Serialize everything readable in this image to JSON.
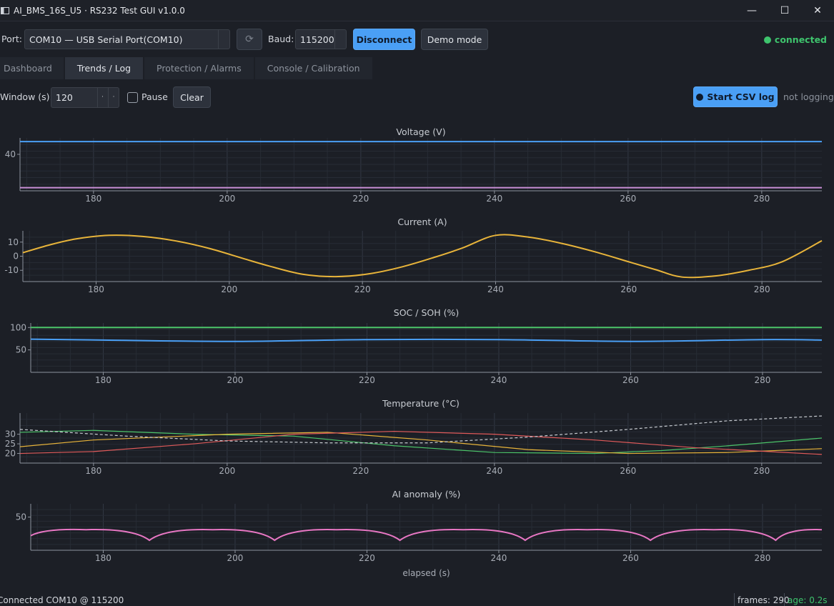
{
  "window": {
    "title": "AI_BMS_16S_U5 · RS232 Test GUI  v1.0.0",
    "minimize": "—",
    "maximize": "☐",
    "close": "✕"
  },
  "toolbar": {
    "port_label": "Port:",
    "port_value": "COM10 — USB Serial Port(COM10)",
    "refresh_icon": "⟳",
    "baud_label": "Baud:",
    "baud_value": "115200",
    "disconnect_label": "Disconnect",
    "demo_label": "Demo mode",
    "connection_status": "connected",
    "status_color": "#3ec46d"
  },
  "tabs": [
    {
      "label": "Dashboard",
      "active": false
    },
    {
      "label": "Trends / Log",
      "active": true
    },
    {
      "label": "Protection / Alarms",
      "active": false
    },
    {
      "label": "Console / Calibration",
      "active": false
    }
  ],
  "controls": {
    "window_label": "Window (s):",
    "window_value": "120",
    "pause_label": "Pause",
    "clear_label": "Clear",
    "csv_label": "Start CSV log",
    "logging_status": "not logging"
  },
  "status_bar": {
    "connection": "Connected COM10 @ 115200",
    "frames": "frames: 290",
    "age": "age: 0.2s"
  },
  "chart_data": [
    {
      "type": "line",
      "title": "Voltage (V)",
      "xlim": [
        169,
        289
      ],
      "ylim": [
        0,
        58
      ],
      "x_ticks": [
        180,
        200,
        220,
        240,
        260,
        280
      ],
      "y_ticks": [
        40
      ],
      "series": [
        {
          "color": "#4a9ff5",
          "x": [
            169,
            289
          ],
          "y": [
            54,
            54
          ]
        },
        {
          "color": "#c98fd6",
          "x": [
            169,
            289
          ],
          "y": [
            3.4,
            3.4
          ]
        }
      ]
    },
    {
      "type": "line",
      "title": "Current (A)",
      "xlim": [
        169,
        289
      ],
      "ylim": [
        -18,
        18
      ],
      "x_ticks": [
        180,
        200,
        220,
        240,
        260,
        280
      ],
      "y_ticks": [
        10,
        0,
        -10
      ],
      "series": [
        {
          "color": "#e8b43a",
          "x": [
            169,
            173,
            177,
            182,
            187,
            192,
            197,
            202,
            206,
            211,
            216,
            221,
            226,
            231,
            235,
            240,
            245,
            250,
            255,
            260,
            264,
            268,
            273,
            278,
            283,
            289
          ],
          "y": [
            2.5,
            8,
            12.3,
            14.8,
            14,
            10.8,
            5.5,
            -1.5,
            -7,
            -12.8,
            -14.5,
            -12.5,
            -7.5,
            -0.5,
            5.8,
            14.8,
            13.5,
            9,
            3,
            -4,
            -9.5,
            -14.8,
            -14,
            -10,
            -4,
            11
          ]
        }
      ]
    },
    {
      "type": "line",
      "title": "SOC / SOH (%)",
      "xlim": [
        169,
        289
      ],
      "ylim": [
        0,
        110
      ],
      "x_ticks": [
        180,
        200,
        220,
        240,
        260,
        280
      ],
      "y_ticks": [
        100,
        50
      ],
      "series": [
        {
          "color": "#4cc56a",
          "x": [
            169,
            289
          ],
          "y": [
            100,
            100
          ]
        },
        {
          "color": "#4a9ff5",
          "x": [
            169,
            180,
            200,
            220,
            240,
            260,
            280,
            289
          ],
          "y": [
            74,
            72,
            69,
            73,
            73,
            69,
            73,
            72
          ]
        }
      ]
    },
    {
      "type": "line",
      "title": "Temperature (°C)",
      "xlim": [
        169,
        289
      ],
      "ylim": [
        15,
        41
      ],
      "x_ticks": [
        180,
        200,
        220,
        240,
        260,
        280
      ],
      "y_ticks": [
        30,
        25,
        20
      ],
      "series": [
        {
          "color": "#4cc56a",
          "x": [
            169,
            180,
            195,
            210,
            225,
            240,
            255,
            265,
            275,
            289
          ],
          "y": [
            31,
            32,
            30,
            29,
            24,
            20.5,
            20,
            21.5,
            24,
            28
          ]
        },
        {
          "color": "#e8b43a",
          "x": [
            169,
            180,
            200,
            215,
            230,
            245,
            260,
            275,
            289
          ],
          "y": [
            23.5,
            27,
            30,
            31,
            27,
            22,
            20,
            20.5,
            22.5
          ]
        },
        {
          "color": "#e05a5a",
          "x": [
            169,
            180,
            195,
            210,
            225,
            240,
            255,
            270,
            289
          ],
          "y": [
            20,
            21,
            25,
            30,
            31.5,
            30,
            27,
            23,
            19.5
          ]
        },
        {
          "color": "#c8ccd2",
          "dashed": true,
          "x": [
            169,
            185,
            200,
            215,
            230,
            245,
            260,
            275,
            289
          ],
          "y": [
            32.5,
            29,
            26.5,
            25.5,
            25.5,
            28.5,
            32.5,
            37,
            39.5
          ]
        }
      ]
    },
    {
      "type": "line",
      "title": "AI anomaly (%)",
      "xlabel": "elapsed (s)",
      "xlim": [
        169,
        289
      ],
      "ylim": [
        0,
        70
      ],
      "x_ticks": [
        180,
        200,
        220,
        240,
        260,
        280
      ],
      "y_ticks": [
        50
      ],
      "series": [
        {
          "color": "#e877c4",
          "x": [
            169,
            177.4,
            187,
            196.6,
            206,
            215.4,
            225,
            234.6,
            244,
            253.4,
            263,
            272.6,
            282,
            289
          ],
          "y": [
            22,
            31,
            15,
            31,
            15,
            31,
            15,
            31,
            15,
            31,
            15,
            31,
            15,
            31
          ]
        }
      ]
    }
  ]
}
